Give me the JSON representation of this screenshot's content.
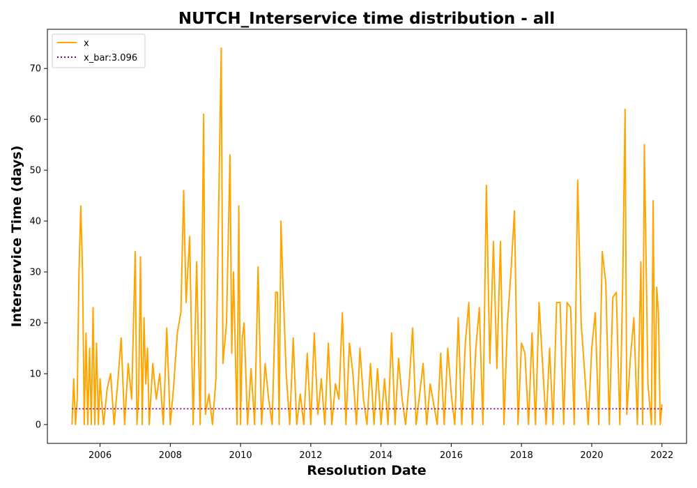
{
  "chart_data": {
    "type": "line",
    "title": "NUTCH_Interservice time distribution - all",
    "xlabel": "Resolution Date",
    "ylabel": "Interservice Time (days)",
    "xlim": [
      2004.5,
      2022.7
    ],
    "ylim": [
      -3.7,
      77.7
    ],
    "x_ticks": [
      "2006",
      "2008",
      "2010",
      "2012",
      "2014",
      "2016",
      "2018",
      "2020",
      "2022"
    ],
    "y_ticks": [
      "0",
      "10",
      "20",
      "30",
      "40",
      "50",
      "60",
      "70"
    ],
    "grid": false,
    "legend_position": "top-left",
    "series": [
      {
        "name": "x",
        "color": "#FFA500",
        "style": "solid",
        "x": [
          2005.2,
          2005.25,
          2005.3,
          2005.35,
          2005.4,
          2005.45,
          2005.5,
          2005.55,
          2005.6,
          2005.65,
          2005.7,
          2005.75,
          2005.8,
          2005.85,
          2005.9,
          2005.95,
          2006.0,
          2006.05,
          2006.1,
          2006.2,
          2006.3,
          2006.4,
          2006.5,
          2006.6,
          2006.7,
          2006.8,
          2006.9,
          2007.0,
          2007.05,
          2007.1,
          2007.15,
          2007.2,
          2007.25,
          2007.3,
          2007.35,
          2007.4,
          2007.5,
          2007.6,
          2007.7,
          2007.8,
          2007.9,
          2008.0,
          2008.1,
          2008.2,
          2008.3,
          2008.38,
          2008.45,
          2008.55,
          2008.65,
          2008.75,
          2008.85,
          2008.95,
          2009.0,
          2009.1,
          2009.2,
          2009.3,
          2009.45,
          2009.5,
          2009.6,
          2009.7,
          2009.75,
          2009.8,
          2009.9,
          2009.95,
          2010.0,
          2010.05,
          2010.1,
          2010.2,
          2010.3,
          2010.4,
          2010.5,
          2010.6,
          2010.7,
          2010.8,
          2010.9,
          2011.0,
          2011.05,
          2011.1,
          2011.15,
          2011.2,
          2011.3,
          2011.4,
          2011.5,
          2011.6,
          2011.7,
          2011.8,
          2011.9,
          2012.0,
          2012.1,
          2012.2,
          2012.3,
          2012.4,
          2012.5,
          2012.6,
          2012.7,
          2012.8,
          2012.9,
          2013.0,
          2013.1,
          2013.2,
          2013.3,
          2013.4,
          2013.5,
          2013.6,
          2013.7,
          2013.8,
          2013.9,
          2014.0,
          2014.1,
          2014.2,
          2014.3,
          2014.4,
          2014.5,
          2014.6,
          2014.7,
          2014.8,
          2014.9,
          2015.0,
          2015.1,
          2015.2,
          2015.3,
          2015.4,
          2015.5,
          2015.6,
          2015.7,
          2015.8,
          2015.9,
          2016.0,
          2016.1,
          2016.2,
          2016.3,
          2016.4,
          2016.5,
          2016.6,
          2016.7,
          2016.8,
          2016.9,
          2017.0,
          2017.1,
          2017.2,
          2017.3,
          2017.4,
          2017.5,
          2017.6,
          2017.7,
          2017.8,
          2017.9,
          2018.0,
          2018.1,
          2018.2,
          2018.3,
          2018.4,
          2018.5,
          2018.6,
          2018.7,
          2018.8,
          2018.9,
          2019.0,
          2019.1,
          2019.2,
          2019.3,
          2019.4,
          2019.5,
          2019.6,
          2019.7,
          2019.8,
          2019.9,
          2020.0,
          2020.1,
          2020.2,
          2020.3,
          2020.4,
          2020.5,
          2020.6,
          2020.7,
          2020.8,
          2020.88,
          2020.95,
          2021.0,
          2021.1,
          2021.2,
          2021.3,
          2021.4,
          2021.45,
          2021.5,
          2021.6,
          2021.7,
          2021.75,
          2021.8,
          2021.85,
          2021.9,
          2021.95,
          2022.0
        ],
        "y": [
          0,
          9,
          0,
          5,
          30,
          43,
          30,
          0,
          18,
          0,
          15,
          0,
          23,
          0,
          16,
          0,
          9,
          4,
          0,
          7,
          10,
          0,
          8,
          17,
          0,
          12,
          5,
          34,
          0,
          6,
          33,
          0,
          21,
          8,
          15,
          0,
          12,
          5,
          10,
          0,
          19,
          0,
          8,
          18,
          22,
          46,
          24,
          37,
          0,
          32,
          0,
          61,
          2,
          6,
          0,
          9,
          74,
          12,
          20,
          53,
          14,
          30,
          0,
          43,
          0,
          17,
          20,
          0,
          11,
          0,
          31,
          0,
          12,
          5,
          0,
          26,
          26,
          0,
          40,
          29,
          10,
          0,
          17,
          0,
          6,
          0,
          14,
          0,
          18,
          2,
          9,
          0,
          16,
          0,
          8,
          5,
          22,
          0,
          16,
          10,
          0,
          15,
          5,
          0,
          12,
          0,
          11,
          0,
          9,
          0,
          18,
          0,
          13,
          5,
          0,
          8,
          19,
          0,
          6,
          12,
          0,
          8,
          4,
          0,
          14,
          0,
          15,
          6,
          0,
          21,
          0,
          16,
          24,
          0,
          15,
          23,
          0,
          47,
          12,
          36,
          11,
          36,
          0,
          20,
          30,
          42,
          0,
          16,
          14,
          0,
          18,
          0,
          24,
          12,
          0,
          15,
          0,
          24,
          24,
          0,
          24,
          23,
          0,
          48,
          20,
          10,
          0,
          15,
          22,
          0,
          34,
          28,
          0,
          25,
          26,
          0,
          27,
          62,
          2,
          13,
          21,
          0,
          32,
          0,
          55,
          8,
          0,
          44,
          0,
          27,
          22,
          0,
          4
        ]
      },
      {
        "name": "x_bar:3.096",
        "color": "#800080",
        "style": "dotted",
        "x": [
          2005.2,
          2022.0
        ],
        "y": [
          3.096,
          3.096
        ]
      }
    ]
  }
}
